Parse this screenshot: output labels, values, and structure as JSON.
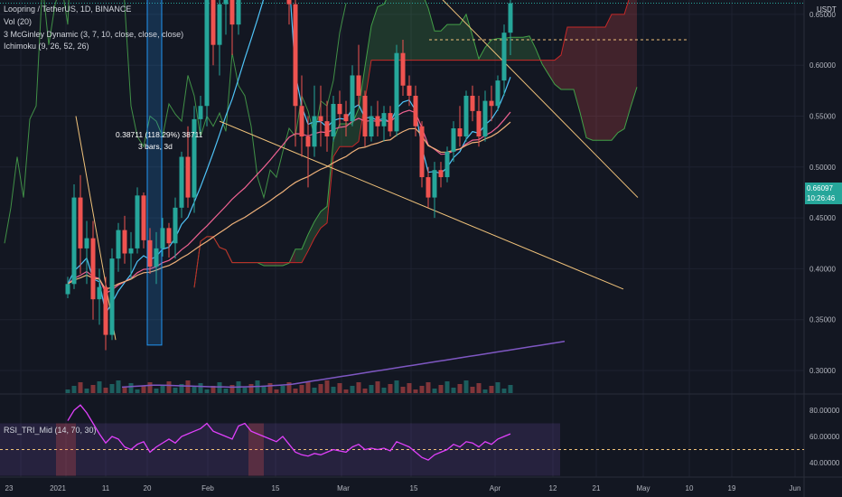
{
  "legend": {
    "symbol": "Loopring / TetherUS, 1D, BINANCE",
    "vol": "Vol (20)",
    "mcginley": "3 McGinley Dynamic (3, 7, 10, close, close, close)",
    "ichimoku": "Ichimoku (9, 26, 52, 26)",
    "rsi": "RSI_TRI_Mid (14, 70, 30)"
  },
  "currency": "USDT",
  "last_price": {
    "price": "0.66097",
    "countdown": "10:26:46"
  },
  "annotation": {
    "line1": "0.38711 (118.29%) 38711",
    "line2": "3 bars, 3d"
  },
  "colors": {
    "background": "#131722",
    "up": "#26a69a",
    "down": "#ef5350",
    "ichimoku_bull": "#a5d6a7",
    "ichimoku_bear": "#ef9a9a",
    "mcginley_fast": "#4fc3f7",
    "mcginley_mid": "#f06292",
    "mcginley_slow": "#f0b27a",
    "trendline": "#f0c27a",
    "vol_ma": "#7e57c2",
    "rsi": "#e040fb",
    "rsi_band": "#4a2a5a"
  },
  "chart_data": {
    "type": "candlestick",
    "price_axis": {
      "ticks": [
        "0.95000",
        "0.90000",
        "0.85000",
        "0.80000",
        "0.75000",
        "0.70000",
        "0.65000",
        "0.60000",
        "0.55000",
        "0.50000",
        "0.45000",
        "0.40000",
        "0.35000",
        "0.30000"
      ],
      "ylim": [
        0.27,
        1.0
      ]
    },
    "rsi_axis": {
      "ticks": [
        "80.00000",
        "60.00000",
        "40.00000"
      ],
      "upper": 70,
      "lower": 30,
      "mid": 50
    },
    "x_ticks": [
      "23",
      "2021",
      "11",
      "20",
      "Feb",
      "15",
      "Mar",
      "15",
      "Apr",
      "12",
      "21",
      "May",
      "10",
      "19",
      "Jun"
    ],
    "candles": [
      [
        0.375,
        0.392,
        0.371,
        0.385
      ],
      [
        0.385,
        0.483,
        0.38,
        0.47
      ],
      [
        0.47,
        0.492,
        0.395,
        0.42
      ],
      [
        0.42,
        0.447,
        0.385,
        0.43
      ],
      [
        0.43,
        0.447,
        0.35,
        0.37
      ],
      [
        0.37,
        0.4,
        0.345,
        0.382
      ],
      [
        0.382,
        0.392,
        0.32,
        0.335
      ],
      [
        0.335,
        0.42,
        0.33,
        0.41
      ],
      [
        0.41,
        0.445,
        0.397,
        0.438
      ],
      [
        0.438,
        0.452,
        0.405,
        0.415
      ],
      [
        0.415,
        0.436,
        0.39,
        0.42
      ],
      [
        0.42,
        0.48,
        0.415,
        0.472
      ],
      [
        0.472,
        0.475,
        0.42,
        0.428
      ],
      [
        0.428,
        0.44,
        0.395,
        0.402
      ],
      [
        0.402,
        0.436,
        0.385,
        0.42
      ],
      [
        0.42,
        0.45,
        0.412,
        0.44
      ],
      [
        0.44,
        0.445,
        0.411,
        0.425
      ],
      [
        0.425,
        0.47,
        0.41,
        0.46
      ],
      [
        0.46,
        0.515,
        0.45,
        0.51
      ],
      [
        0.51,
        0.54,
        0.46,
        0.47
      ],
      [
        0.47,
        0.56,
        0.455,
        0.547
      ],
      [
        0.547,
        0.57,
        0.53,
        0.56
      ],
      [
        0.56,
        0.7,
        0.54,
        0.68
      ],
      [
        0.68,
        0.72,
        0.6,
        0.62
      ],
      [
        0.62,
        0.69,
        0.59,
        0.66
      ],
      [
        0.66,
        0.7,
        0.63,
        0.68
      ],
      [
        0.68,
        0.73,
        0.61,
        0.64
      ],
      [
        0.64,
        0.81,
        0.63,
        0.79
      ],
      [
        0.79,
        0.89,
        0.75,
        0.83
      ],
      [
        0.83,
        0.84,
        0.7,
        0.72
      ],
      [
        0.72,
        0.76,
        0.68,
        0.74
      ],
      [
        0.74,
        0.78,
        0.71,
        0.77
      ],
      [
        0.77,
        0.78,
        0.73,
        0.75
      ],
      [
        0.75,
        0.76,
        0.69,
        0.7
      ],
      [
        0.7,
        0.78,
        0.69,
        0.77
      ],
      [
        0.77,
        0.78,
        0.64,
        0.66
      ],
      [
        0.66,
        0.69,
        0.52,
        0.56
      ],
      [
        0.56,
        0.59,
        0.51,
        0.53
      ],
      [
        0.53,
        0.55,
        0.48,
        0.52
      ],
      [
        0.52,
        0.58,
        0.51,
        0.55
      ],
      [
        0.55,
        0.58,
        0.52,
        0.545
      ],
      [
        0.545,
        0.565,
        0.515,
        0.53
      ],
      [
        0.53,
        0.57,
        0.525,
        0.562
      ],
      [
        0.562,
        0.575,
        0.54,
        0.552
      ],
      [
        0.552,
        0.565,
        0.53,
        0.545
      ],
      [
        0.545,
        0.6,
        0.54,
        0.59
      ],
      [
        0.59,
        0.62,
        0.56,
        0.57
      ],
      [
        0.57,
        0.575,
        0.52,
        0.53
      ],
      [
        0.53,
        0.56,
        0.525,
        0.55
      ],
      [
        0.55,
        0.565,
        0.53,
        0.54
      ],
      [
        0.54,
        0.56,
        0.525,
        0.553
      ],
      [
        0.553,
        0.56,
        0.53,
        0.535
      ],
      [
        0.535,
        0.62,
        0.53,
        0.612
      ],
      [
        0.612,
        0.625,
        0.57,
        0.58
      ],
      [
        0.58,
        0.59,
        0.56,
        0.57
      ],
      [
        0.57,
        0.58,
        0.53,
        0.54
      ],
      [
        0.54,
        0.545,
        0.48,
        0.49
      ],
      [
        0.49,
        0.5,
        0.46,
        0.47
      ],
      [
        0.47,
        0.505,
        0.45,
        0.497
      ],
      [
        0.497,
        0.505,
        0.48,
        0.49
      ],
      [
        0.49,
        0.52,
        0.485,
        0.515
      ],
      [
        0.515,
        0.545,
        0.505,
        0.538
      ],
      [
        0.538,
        0.56,
        0.52,
        0.53
      ],
      [
        0.53,
        0.575,
        0.525,
        0.57
      ],
      [
        0.57,
        0.58,
        0.545,
        0.555
      ],
      [
        0.555,
        0.57,
        0.52,
        0.53
      ],
      [
        0.53,
        0.575,
        0.525,
        0.565
      ],
      [
        0.565,
        0.58,
        0.545,
        0.56
      ],
      [
        0.56,
        0.59,
        0.555,
        0.585
      ],
      [
        0.585,
        0.64,
        0.57,
        0.632
      ],
      [
        0.632,
        0.672,
        0.61,
        0.661
      ]
    ],
    "vol_ma": [
      0.03,
      0.032,
      0.034,
      0.036,
      0.038,
      0.04,
      0.04,
      0.039,
      0.038,
      0.037,
      0.036,
      0.035,
      0.034,
      0.033,
      0.032,
      0.031,
      0.031,
      0.03,
      0.03,
      0.031,
      0.032,
      0.033,
      0.034,
      0.036,
      0.038,
      0.04,
      0.042,
      0.045,
      0.05,
      0.055,
      0.06,
      0.065,
      0.07,
      0.075,
      0.08,
      0.085,
      0.09,
      0.095,
      0.1,
      0.105,
      0.11,
      0.115,
      0.12,
      0.125,
      0.13,
      0.135,
      0.14,
      0.145,
      0.15,
      0.155,
      0.16,
      0.165,
      0.17,
      0.175,
      0.18,
      0.185,
      0.19,
      0.195,
      0.2,
      0.205,
      0.21,
      0.215,
      0.22,
      0.225,
      0.23,
      0.235,
      0.24,
      0.245,
      0.25,
      0.255,
      0.26
    ],
    "rsi": [
      72,
      80,
      84,
      78,
      70,
      62,
      55,
      60,
      58,
      52,
      50,
      54,
      56,
      48,
      52,
      55,
      58,
      55,
      60,
      62,
      64,
      66,
      70,
      64,
      62,
      60,
      58,
      68,
      70,
      64,
      62,
      60,
      58,
      56,
      60,
      54,
      48,
      46,
      45,
      47,
      46,
      48,
      50,
      49,
      48,
      52,
      54,
      50,
      51,
      50,
      51,
      49,
      56,
      54,
      52,
      48,
      44,
      42,
      46,
      48,
      50,
      54,
      52,
      56,
      55,
      52,
      56,
      54,
      58,
      60,
      62
    ]
  }
}
